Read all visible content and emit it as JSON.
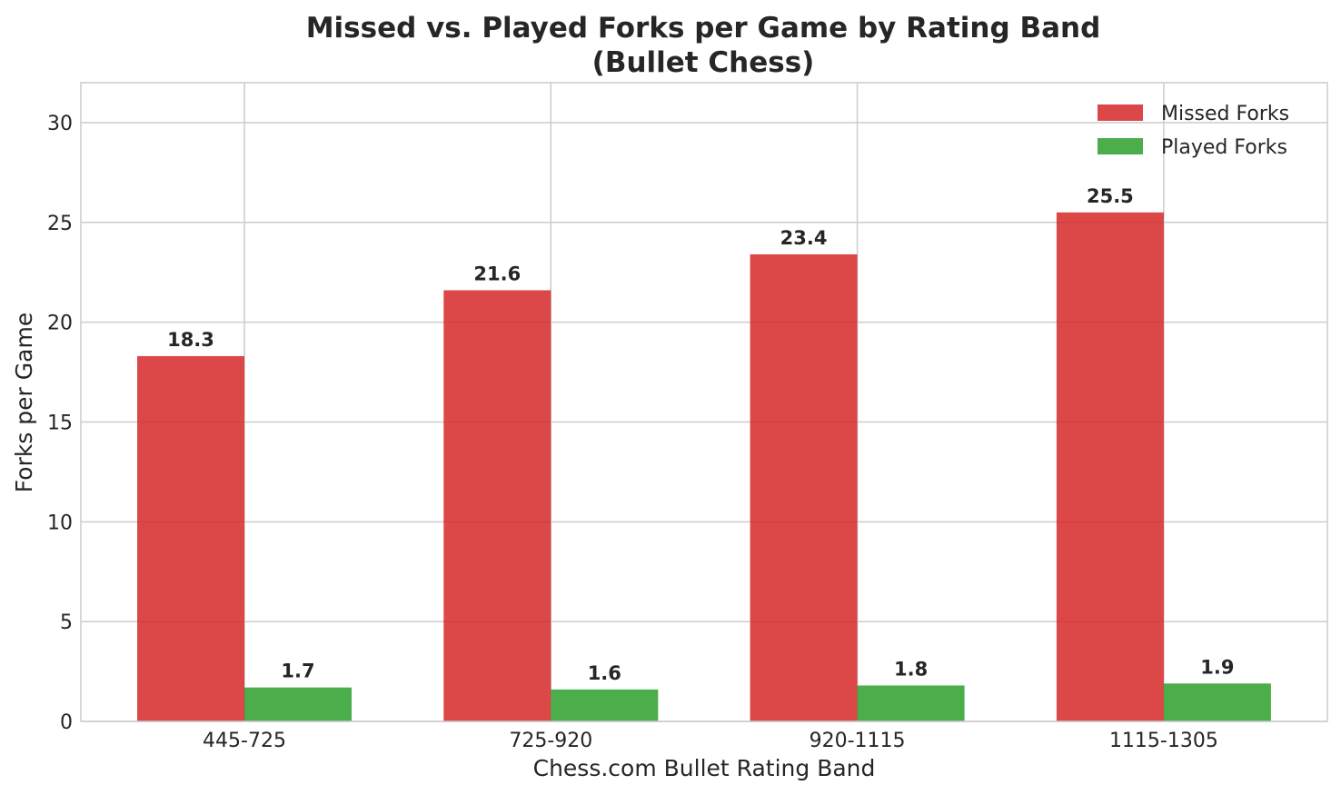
{
  "chart_data": {
    "type": "bar",
    "title_lines": [
      "Missed vs. Played Forks per Game by Rating Band",
      "(Bullet Chess)"
    ],
    "xlabel": "Chess.com Bullet Rating Band",
    "ylabel": "Forks per Game",
    "categories": [
      "445-725",
      "725-920",
      "920-1115",
      "1115-1305"
    ],
    "series": [
      {
        "name": "Missed Forks",
        "values": [
          18.3,
          21.6,
          23.4,
          25.5
        ],
        "labels": [
          "18.3",
          "21.6",
          "23.4",
          "25.5"
        ],
        "color": "#d62728"
      },
      {
        "name": "Played Forks",
        "values": [
          1.7,
          1.6,
          1.8,
          1.9
        ],
        "labels": [
          "1.7",
          "1.6",
          "1.8",
          "1.9"
        ],
        "color": "#2ca02c"
      }
    ],
    "ylim": [
      0,
      32
    ],
    "yticks": [
      0,
      5,
      10,
      15,
      20,
      25,
      30
    ],
    "grid": true,
    "legend": "top-right"
  }
}
